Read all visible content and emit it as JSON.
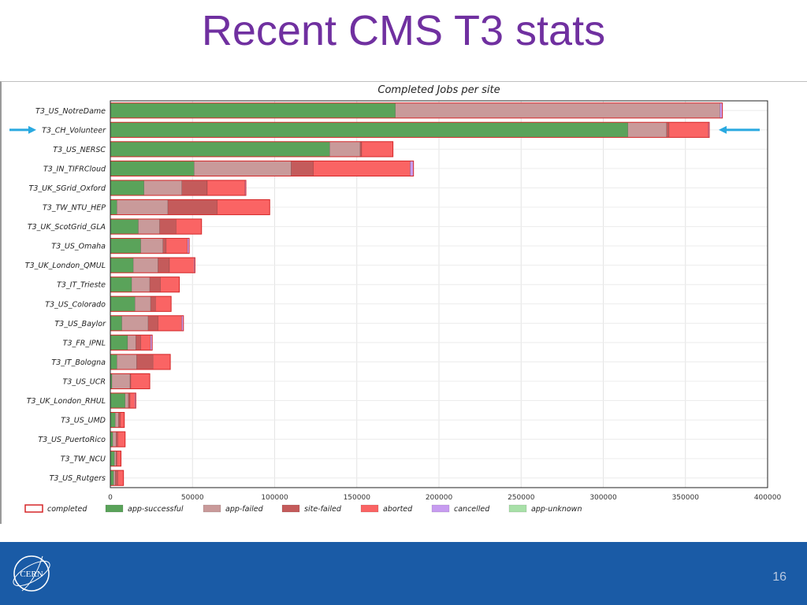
{
  "slide": {
    "title": "Recent CMS T3 stats",
    "page_number": "16",
    "logo_text": "CERN"
  },
  "colors": {
    "completed": "#d62728",
    "app-successful": "#5aa35a",
    "app-failed": "#c99a9a",
    "site-failed": "#c45b5b",
    "aborted": "#fa6464",
    "cancelled": "#c79cf0",
    "app-unknown": "#a8e0a8",
    "title": "#7030a0",
    "footer": "#1a5ba6",
    "arrow": "#29a9e0"
  },
  "chart_data": {
    "type": "bar",
    "orientation": "horizontal",
    "stacked": true,
    "title": "Completed Jobs per site",
    "xlim": [
      0,
      400000
    ],
    "xticks": [
      0,
      50000,
      100000,
      150000,
      200000,
      250000,
      300000,
      350000,
      400000
    ],
    "xtick_labels": [
      "0",
      "50000",
      "100000",
      "150000",
      "200000",
      "250000",
      "300000",
      "350000",
      "400000"
    ],
    "grid": true,
    "legend_placement": "bottom",
    "highlighted_category": "T3_CH_Volunteer",
    "categories": [
      "T3_US_NotreDame",
      "T3_CH_Volunteer",
      "T3_US_NERSC",
      "T3_IN_TIFRCloud",
      "T3_UK_SGrid_Oxford",
      "T3_TW_NTU_HEP",
      "T3_UK_ScotGrid_GLA",
      "T3_US_Omaha",
      "T3_UK_London_QMUL",
      "T3_IT_Trieste",
      "T3_US_Colorado",
      "T3_US_Baylor",
      "T3_FR_IPNL",
      "T3_IT_Bologna",
      "T3_US_UCR",
      "T3_UK_London_RHUL",
      "T3_US_UMD",
      "T3_US_PuertoRico",
      "T3_TW_NCU",
      "T3_US_Rutgers"
    ],
    "legend": [
      "completed",
      "app-successful",
      "app-failed",
      "site-failed",
      "aborted",
      "cancelled",
      "app-unknown"
    ],
    "series": [
      {
        "name": "app-successful",
        "values": [
          173500,
          315000,
          133500,
          51000,
          20500,
          4000,
          17000,
          18500,
          14000,
          13000,
          15000,
          7000,
          10500,
          4000,
          1000,
          9000,
          3000,
          1500,
          2500,
          2000
        ]
      },
      {
        "name": "app-failed",
        "values": [
          197500,
          23500,
          18500,
          59000,
          23000,
          31000,
          13000,
          13500,
          15000,
          11000,
          9500,
          16000,
          5000,
          12000,
          11000,
          2000,
          2000,
          2000,
          1000,
          1000
        ]
      },
      {
        "name": "site-failed",
        "values": [
          0,
          1500,
          1000,
          13500,
          15500,
          30000,
          10000,
          2000,
          7000,
          6500,
          3000,
          6000,
          3000,
          10000,
          500,
          1000,
          1000,
          1000,
          500,
          1500
        ]
      },
      {
        "name": "aborted",
        "values": [
          0,
          24000,
          19000,
          59000,
          23000,
          32000,
          15500,
          13000,
          15000,
          11500,
          9500,
          14500,
          6000,
          10500,
          11500,
          3000,
          2500,
          4500,
          2500,
          3500
        ]
      },
      {
        "name": "cancelled",
        "values": [
          1500,
          500,
          0,
          2000,
          500,
          0,
          0,
          1000,
          500,
          0,
          0,
          1000,
          1000,
          0,
          0,
          500,
          0,
          0,
          0,
          0
        ]
      },
      {
        "name": "app-unknown",
        "values": [
          0,
          0,
          0,
          0,
          0,
          0,
          0,
          0,
          0,
          0,
          0,
          0,
          0,
          0,
          0,
          0,
          0,
          0,
          0,
          0
        ]
      }
    ]
  }
}
